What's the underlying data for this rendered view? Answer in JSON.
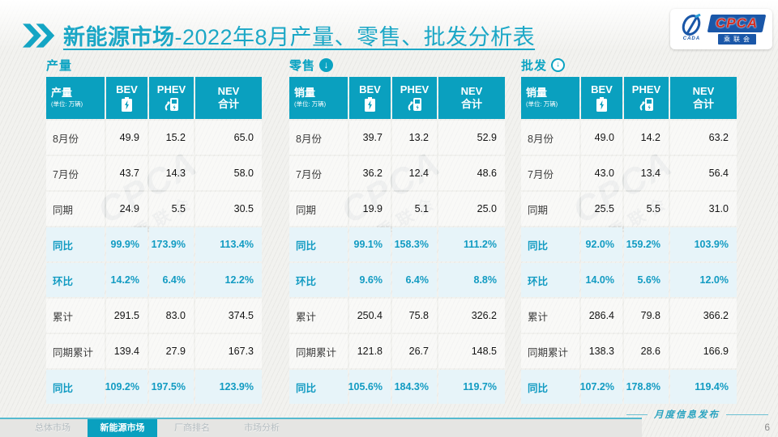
{
  "title": {
    "highlight": "新能源市场",
    "rest": "-2022年8月产量、零售、批发分析表"
  },
  "logo": {
    "emblem_sub": "CADA",
    "name": "CPCA",
    "cn_name": "乘联会"
  },
  "watermark": {
    "line1": "CPCA",
    "line2": "乘联会"
  },
  "colors": {
    "teal": "#0aa0bf",
    "highlight_row_bg": "#e7f4f9",
    "highlight_text": "#129bc2",
    "title_text": "#1ba7c6"
  },
  "tables": [
    {
      "section": "产量",
      "arrow": "none",
      "header": {
        "label": "产量",
        "unit": "(单位: 万辆)",
        "bev": "BEV",
        "phev": "PHEV",
        "nev1": "NEV",
        "nev2": "合计"
      },
      "rows": [
        {
          "label": "8月份",
          "values": [
            "49.9",
            "15.2",
            "65.0"
          ],
          "highlight": false
        },
        {
          "label": "7月份",
          "values": [
            "43.7",
            "14.3",
            "58.0"
          ],
          "highlight": false
        },
        {
          "label": "同期",
          "values": [
            "24.9",
            "5.5",
            "30.5"
          ],
          "highlight": false
        },
        {
          "label": "同比",
          "values": [
            "99.9%",
            "173.9%",
            "113.4%"
          ],
          "highlight": true
        },
        {
          "label": "环比",
          "values": [
            "14.2%",
            "6.4%",
            "12.2%"
          ],
          "highlight": true
        },
        {
          "label": "累计",
          "values": [
            "291.5",
            "83.0",
            "374.5"
          ],
          "highlight": false
        },
        {
          "label": "同期累计",
          "values": [
            "139.4",
            "27.9",
            "167.3"
          ],
          "highlight": false
        },
        {
          "label": "同比",
          "values": [
            "109.2%",
            "197.5%",
            "123.9%"
          ],
          "highlight": true
        }
      ]
    },
    {
      "section": "零售",
      "arrow": "solid",
      "header": {
        "label": "销量",
        "unit": "(单位: 万辆)",
        "bev": "BEV",
        "phev": "PHEV",
        "nev1": "NEV",
        "nev2": "合计"
      },
      "rows": [
        {
          "label": "8月份",
          "values": [
            "39.7",
            "13.2",
            "52.9"
          ],
          "highlight": false
        },
        {
          "label": "7月份",
          "values": [
            "36.2",
            "12.4",
            "48.6"
          ],
          "highlight": false
        },
        {
          "label": "同期",
          "values": [
            "19.9",
            "5.1",
            "25.0"
          ],
          "highlight": false
        },
        {
          "label": "同比",
          "values": [
            "99.1%",
            "158.3%",
            "111.2%"
          ],
          "highlight": true
        },
        {
          "label": "环比",
          "values": [
            "9.6%",
            "6.4%",
            "8.8%"
          ],
          "highlight": true
        },
        {
          "label": "累计",
          "values": [
            "250.4",
            "75.8",
            "326.2"
          ],
          "highlight": false
        },
        {
          "label": "同期累计",
          "values": [
            "121.8",
            "26.7",
            "148.5"
          ],
          "highlight": false
        },
        {
          "label": "同比",
          "values": [
            "105.6%",
            "184.3%",
            "119.7%"
          ],
          "highlight": true
        }
      ]
    },
    {
      "section": "批发",
      "arrow": "outline",
      "header": {
        "label": "销量",
        "unit": "(单位: 万辆)",
        "bev": "BEV",
        "phev": "PHEV",
        "nev1": "NEV",
        "nev2": "合计"
      },
      "rows": [
        {
          "label": "8月份",
          "values": [
            "49.0",
            "14.2",
            "63.2"
          ],
          "highlight": false
        },
        {
          "label": "7月份",
          "values": [
            "43.0",
            "13.4",
            "56.4"
          ],
          "highlight": false
        },
        {
          "label": "同期",
          "values": [
            "25.5",
            "5.5",
            "31.0"
          ],
          "highlight": false
        },
        {
          "label": "同比",
          "values": [
            "92.0%",
            "159.2%",
            "103.9%"
          ],
          "highlight": true
        },
        {
          "label": "环比",
          "values": [
            "14.0%",
            "5.6%",
            "12.0%"
          ],
          "highlight": true
        },
        {
          "label": "累计",
          "values": [
            "286.4",
            "79.8",
            "366.2"
          ],
          "highlight": false
        },
        {
          "label": "同期累计",
          "values": [
            "138.3",
            "28.6",
            "166.9"
          ],
          "highlight": false
        },
        {
          "label": "同比",
          "values": [
            "107.2%",
            "178.8%",
            "119.4%"
          ],
          "highlight": true
        }
      ]
    }
  ],
  "footer": {
    "tabs": [
      {
        "label": "总体市场",
        "active": false
      },
      {
        "label": "新能源市场",
        "active": true
      },
      {
        "label": "厂商排名",
        "active": false
      },
      {
        "label": "市场分析",
        "active": false
      }
    ],
    "caption": "月度信息发布",
    "page": "6"
  }
}
